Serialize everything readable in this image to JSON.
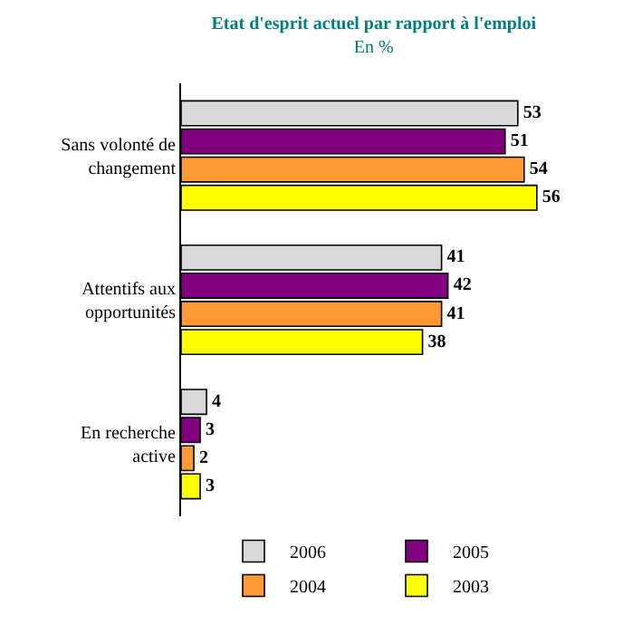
{
  "chart_data": {
    "type": "bar",
    "orientation": "horizontal",
    "title": "Etat d'esprit actuel par rapport à l'emploi",
    "subtitle": "En %",
    "categories": [
      "Sans volonté de changement",
      "Attentifs aux opportunités",
      "En recherche active"
    ],
    "series": [
      {
        "name": "2006",
        "color": "#d9d9d9",
        "values": [
          53,
          41,
          4
        ]
      },
      {
        "name": "2005",
        "color": "#800080",
        "values": [
          51,
          42,
          3
        ]
      },
      {
        "name": "2004",
        "color": "#ff9933",
        "values": [
          54,
          41,
          2
        ]
      },
      {
        "name": "2003",
        "color": "#ffff00",
        "values": [
          56,
          38,
          3
        ]
      }
    ],
    "data_labels": true,
    "legend": "bottom"
  }
}
